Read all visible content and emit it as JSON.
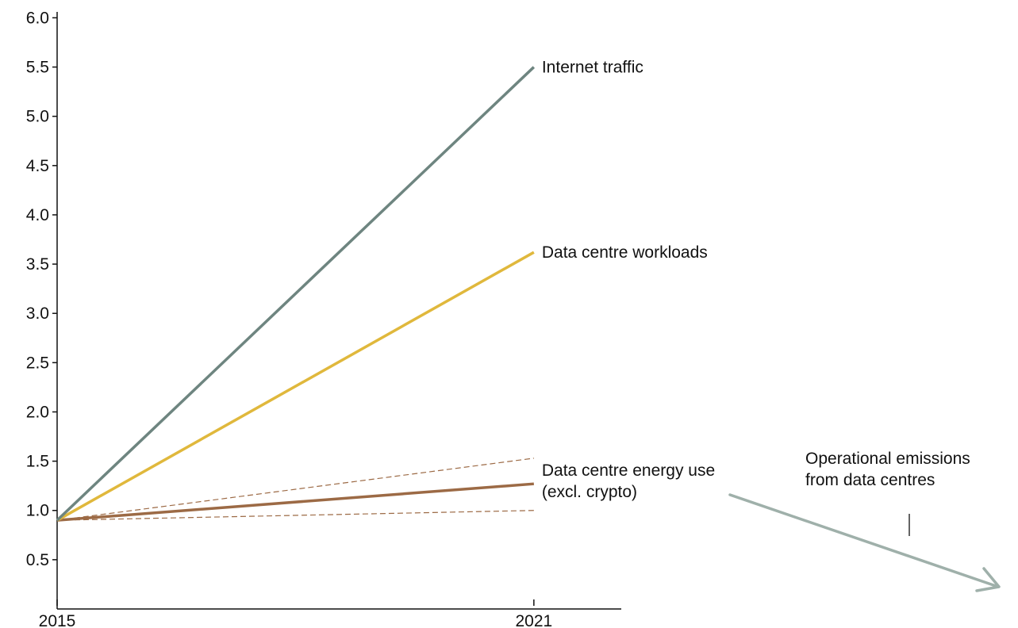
{
  "chart_data": {
    "type": "line",
    "title": "",
    "xlabel": "",
    "ylabel": "",
    "x": [
      2015,
      2021
    ],
    "xlim": [
      2015,
      2022.1
    ],
    "ylim": [
      0,
      6.1
    ],
    "x_ticks": [
      "2015",
      "2021"
    ],
    "y_ticks": [
      "0.5",
      "1.0",
      "1.5",
      "2.0",
      "2.5",
      "3.0",
      "3.5",
      "4.0",
      "4.5",
      "5.0",
      "5.5",
      "6.0"
    ],
    "grid": false,
    "legend": "direct labels at line ends",
    "series": [
      {
        "name": "Internet traffic",
        "values": [
          0.9,
          5.5
        ],
        "color": "#6e8580",
        "style": "solid"
      },
      {
        "name": "Data centre workloads",
        "values": [
          0.9,
          3.62
        ],
        "color": "#e0b83c",
        "style": "solid"
      },
      {
        "name": "Data centre energy use",
        "name_line2": "(excl. crypto)",
        "values": [
          0.9,
          1.27
        ],
        "color": "#9c6a45",
        "style": "solid"
      },
      {
        "values": [
          0.9,
          1.53
        ],
        "color": "#9c6a45",
        "style": "dashed"
      },
      {
        "values": [
          0.9,
          1.0
        ],
        "color": "#9c6a45",
        "style": "dashed"
      }
    ],
    "annotation": {
      "line1": "Operational emissions",
      "line2": "from data centres",
      "arrow_color": "#9fb0aa",
      "direction": "decreasing"
    }
  }
}
